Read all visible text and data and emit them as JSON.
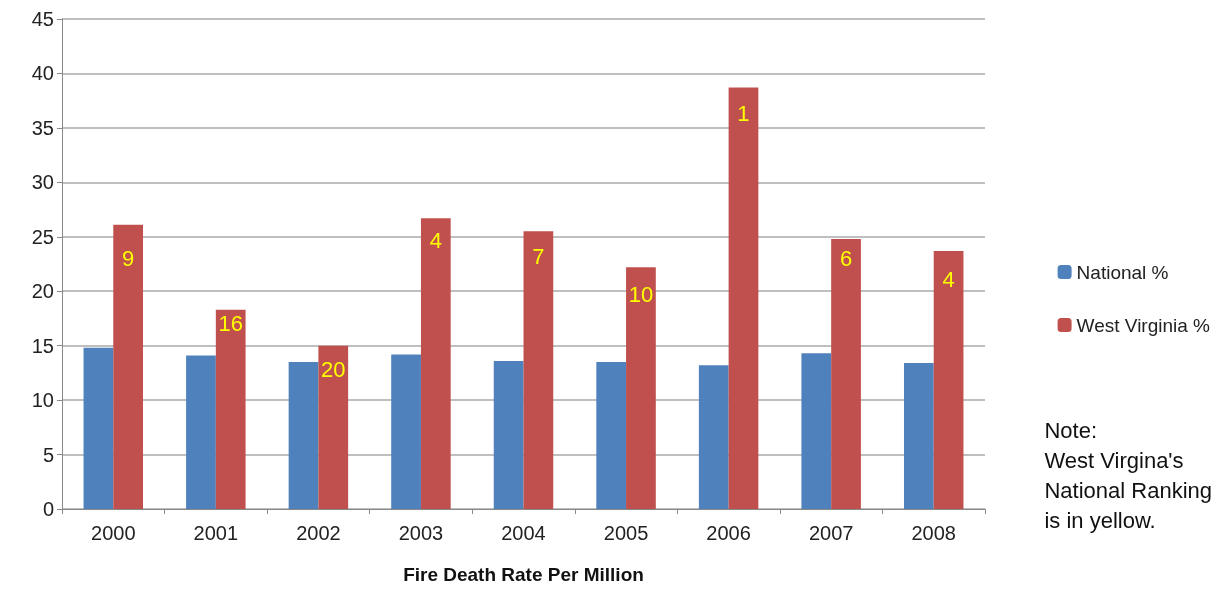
{
  "chart_data": {
    "type": "bar",
    "xlabel": "Fire Death Rate Per Million",
    "categories": [
      "2000",
      "2001",
      "2002",
      "2003",
      "2004",
      "2005",
      "2006",
      "2007",
      "2008"
    ],
    "series": [
      {
        "name": "National %",
        "color": "#4f81bd",
        "values": [
          14.8,
          14.1,
          13.5,
          14.2,
          13.6,
          13.5,
          13.2,
          14.3,
          13.4
        ]
      },
      {
        "name": "West Virginia %",
        "color": "#c0504d",
        "values": [
          26.1,
          18.3,
          15.0,
          26.7,
          25.5,
          22.2,
          38.7,
          24.8,
          23.7
        ]
      }
    ],
    "ylim": [
      0,
      45
    ],
    "yticks": [
      0,
      5,
      10,
      15,
      20,
      25,
      30,
      35,
      40,
      45
    ],
    "grid": "y",
    "legend": "right",
    "annotations": [
      {
        "text": "9",
        "x": "2000",
        "y": 23.0
      },
      {
        "text": "16",
        "x": "2001",
        "y": 17.0
      },
      {
        "text": "20",
        "x": "2002",
        "y": 12.8
      },
      {
        "text": "4",
        "x": "2003",
        "y": 24.7
      },
      {
        "text": "7",
        "x": "2004",
        "y": 23.2
      },
      {
        "text": "10",
        "x": "2005",
        "y": 19.7
      },
      {
        "text": "1",
        "x": "2006",
        "y": 36.3
      },
      {
        "text": "6",
        "x": "2007",
        "y": 23.0
      },
      {
        "text": "4",
        "x": "2008",
        "y": 21.1
      },
      "Note:\nWest Virgina's\nNational Ranking\nis in yellow."
    ]
  }
}
